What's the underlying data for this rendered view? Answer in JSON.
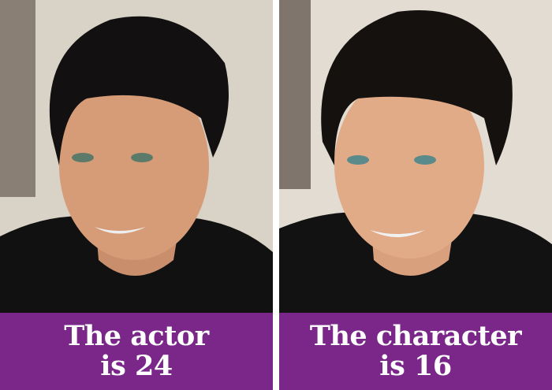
{
  "panels": [
    {
      "caption_line1": "The actor",
      "caption_line2": "is 24"
    },
    {
      "caption_line1": "The character",
      "caption_line2": "is 16"
    }
  ],
  "colors": {
    "caption_background": "#7a2789",
    "caption_text": "#ffffff",
    "divider": "#ffffff"
  }
}
